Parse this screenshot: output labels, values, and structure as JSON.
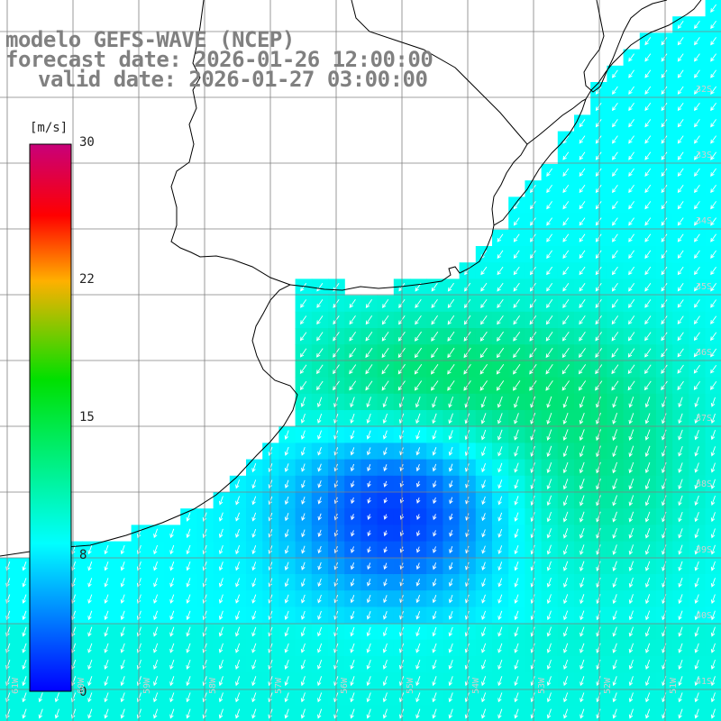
{
  "title": {
    "line1": "modelo GEFS-WAVE (NCEP)",
    "line2": "forecast date: 2026-01-26 12:00:00",
    "line3": "valid date: 2026-01-27 03:00:00"
  },
  "colorbar": {
    "unit": "[m/s]",
    "ticks": [
      "30",
      "22",
      "15",
      "8",
      "0"
    ],
    "colors": [
      "#c8007a",
      "#ff0000",
      "#ffb000",
      "#00e000",
      "#00ffff",
      "#0000ff"
    ]
  },
  "lat_labels": [
    "32S",
    "33S",
    "34S",
    "35S",
    "36S",
    "37S",
    "38S",
    "39S",
    "40S",
    "41S"
  ],
  "lon_labels": [
    "61W",
    "60W",
    "59W",
    "58W",
    "57W",
    "56W",
    "55W",
    "54W",
    "53W",
    "52W",
    "51W"
  ],
  "colors": {
    "land": "#ffffff",
    "coast": "#000000",
    "grid": "#808080",
    "arrow": "#ffffff"
  }
}
